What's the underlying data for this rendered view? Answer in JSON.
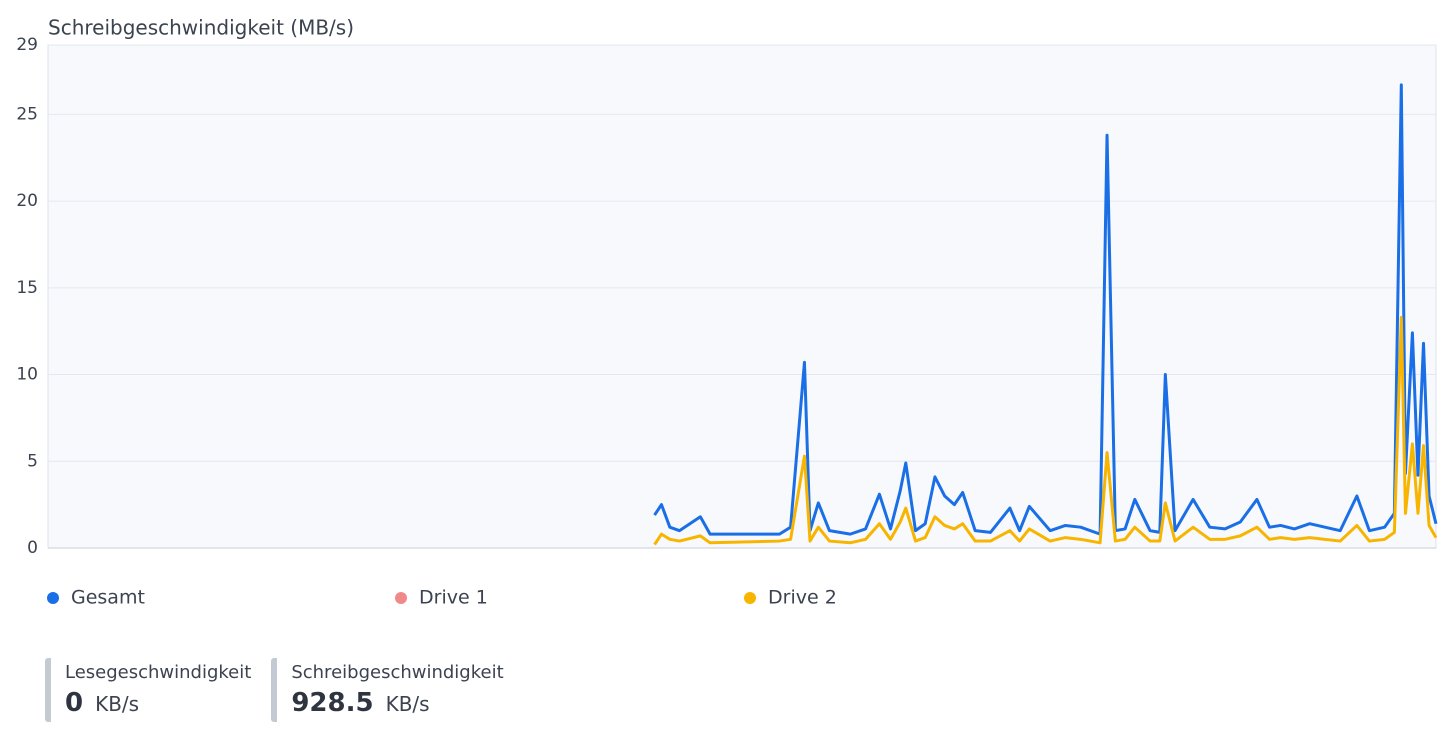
{
  "chart_data": {
    "type": "line",
    "title": "Schreibgeschwindigkeit (MB/s)",
    "xlim": [
      0,
      100
    ],
    "ylim": [
      0,
      29
    ],
    "yticks": [
      0,
      5,
      10,
      15,
      20,
      25,
      29
    ],
    "grid": true,
    "legend": "bottom",
    "x": [
      43.7,
      44.2,
      44.8,
      45.5,
      47.0,
      47.7,
      52.7,
      53.5,
      54.5,
      54.9,
      55.5,
      56.3,
      57.8,
      58.9,
      59.9,
      60.7,
      61.4,
      61.8,
      62.5,
      63.2,
      63.9,
      64.6,
      65.3,
      65.9,
      66.8,
      67.9,
      69.3,
      70.0,
      70.7,
      72.2,
      73.3,
      74.4,
      75.8,
      76.3,
      76.9,
      77.6,
      78.3,
      79.4,
      80.1,
      80.5,
      81.2,
      82.5,
      83.7,
      84.8,
      85.9,
      87.1,
      88.0,
      88.8,
      89.8,
      90.9,
      92.0,
      93.1,
      94.3,
      95.2,
      96.3,
      97.0,
      97.5,
      97.8,
      98.3,
      98.7,
      99.1,
      99.5,
      100
    ],
    "series": [
      {
        "name": "Gesamt",
        "color": "#1a6fe6",
        "values": [
          1.9,
          2.5,
          1.2,
          1.0,
          1.8,
          0.8,
          0.8,
          1.2,
          10.7,
          1.0,
          2.6,
          1.0,
          0.8,
          1.1,
          3.1,
          1.1,
          3.3,
          4.9,
          1.0,
          1.4,
          4.1,
          3.0,
          2.5,
          3.2,
          1.0,
          0.9,
          2.3,
          1.0,
          2.4,
          1.0,
          1.3,
          1.2,
          0.8,
          23.8,
          1.0,
          1.1,
          2.8,
          1.0,
          0.9,
          10.0,
          1.0,
          2.8,
          1.2,
          1.1,
          1.5,
          2.8,
          1.2,
          1.3,
          1.1,
          1.4,
          1.2,
          1.0,
          3.0,
          1.0,
          1.2,
          2.0,
          26.7,
          4.3,
          12.4,
          4.2,
          11.8,
          3.0,
          1.4
        ]
      },
      {
        "name": "Drive 1",
        "color": "#f08a8a"
      },
      {
        "name": "Drive 2",
        "color": "#f7b500",
        "values": [
          0.2,
          0.8,
          0.5,
          0.4,
          0.7,
          0.3,
          0.4,
          0.5,
          5.3,
          0.4,
          1.2,
          0.4,
          0.3,
          0.5,
          1.4,
          0.5,
          1.5,
          2.3,
          0.4,
          0.6,
          1.8,
          1.3,
          1.1,
          1.4,
          0.4,
          0.4,
          1.0,
          0.4,
          1.1,
          0.4,
          0.6,
          0.5,
          0.3,
          5.5,
          0.4,
          0.5,
          1.2,
          0.4,
          0.4,
          2.6,
          0.4,
          1.2,
          0.5,
          0.5,
          0.7,
          1.2,
          0.5,
          0.6,
          0.5,
          0.6,
          0.5,
          0.4,
          1.3,
          0.4,
          0.5,
          0.9,
          13.3,
          2.0,
          6.0,
          2.0,
          5.9,
          1.3,
          0.6
        ]
      }
    ]
  },
  "stats": [
    {
      "label": "Lesegeschwindigkeit",
      "value": 0,
      "unit": "KB/s"
    },
    {
      "label": "Schreibgeschwindigkeit",
      "value": 928.5,
      "unit": "KB/s"
    }
  ]
}
